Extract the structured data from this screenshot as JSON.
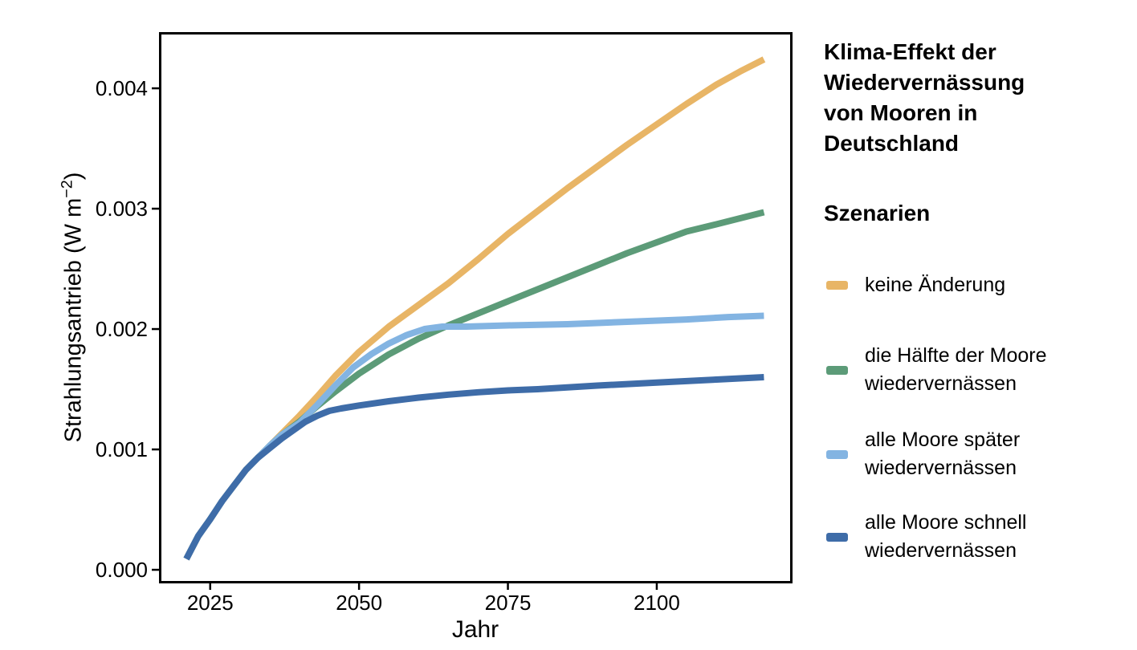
{
  "chart_data": {
    "type": "line",
    "title": "Klima-Effekt der Wiedervernässung von Mooren in Deutschland",
    "title_lines": [
      "Klima-Effekt der",
      "Wiedervernässung",
      "von Mooren in",
      "Deutschland"
    ],
    "legend_title": "Szenarien",
    "legend_position": "right",
    "grid": false,
    "xlabel": "Jahr",
    "ylabel": "Strahlungsantrieb (W m−2)",
    "ylabel_prefix": "Strahlungsantrieb (W m",
    "ylabel_superscript": "−2",
    "ylabel_suffix": ")",
    "xlim": [
      2016.4,
      2122.8
    ],
    "ylim": [
      -0.000113,
      0.004467
    ],
    "x_ticks": [
      {
        "value": 2025,
        "label": "2025"
      },
      {
        "value": 2050,
        "label": "2050"
      },
      {
        "value": 2075,
        "label": "2075"
      },
      {
        "value": 2100,
        "label": "2100"
      }
    ],
    "y_ticks": [
      {
        "value": 0.0,
        "label": "0.000"
      },
      {
        "value": 0.001,
        "label": "0.001"
      },
      {
        "value": 0.002,
        "label": "0.002"
      },
      {
        "value": 0.003,
        "label": "0.003"
      },
      {
        "value": 0.004,
        "label": "0.004"
      }
    ],
    "axis_color": "#000000",
    "series": [
      {
        "name": "keine Änderung",
        "slug": "keine-aenderung",
        "legend_lines": [
          "keine Änderung"
        ],
        "color": "#E8B566",
        "points": [
          [
            2021,
            9e-05
          ],
          [
            2023,
            0.00028
          ],
          [
            2025,
            0.00042
          ],
          [
            2027,
            0.00057
          ],
          [
            2029,
            0.0007
          ],
          [
            2031,
            0.00083
          ],
          [
            2033,
            0.00093
          ],
          [
            2035,
            0.00103
          ],
          [
            2037,
            0.00113
          ],
          [
            2040,
            0.00128
          ],
          [
            2043,
            0.00144
          ],
          [
            2046,
            0.00161
          ],
          [
            2050,
            0.00181
          ],
          [
            2055,
            0.00202
          ],
          [
            2060,
            0.0022
          ],
          [
            2065,
            0.00238
          ],
          [
            2070,
            0.00258
          ],
          [
            2075,
            0.00279
          ],
          [
            2080,
            0.00298
          ],
          [
            2085,
            0.00317
          ],
          [
            2090,
            0.00335
          ],
          [
            2095,
            0.00353
          ],
          [
            2100,
            0.0037
          ],
          [
            2105,
            0.00387
          ],
          [
            2110,
            0.00403
          ],
          [
            2114,
            0.00414
          ],
          [
            2118,
            0.00424
          ]
        ]
      },
      {
        "name": "die Hälfte der Moore wiedervernässen",
        "slug": "haelfte-der-moore-wiedervernaessen",
        "legend_lines": [
          "die Hälfte der Moore",
          "wiedervernässen"
        ],
        "color": "#5C9B78",
        "points": [
          [
            2021,
            9e-05
          ],
          [
            2023,
            0.00028
          ],
          [
            2025,
            0.00042
          ],
          [
            2027,
            0.00057
          ],
          [
            2029,
            0.0007
          ],
          [
            2031,
            0.00083
          ],
          [
            2033,
            0.00093
          ],
          [
            2035,
            0.00103
          ],
          [
            2037,
            0.00112
          ],
          [
            2040,
            0.00123
          ],
          [
            2043,
            0.00136
          ],
          [
            2046,
            0.00148
          ],
          [
            2050,
            0.00163
          ],
          [
            2055,
            0.00179
          ],
          [
            2060,
            0.00192
          ],
          [
            2065,
            0.00203
          ],
          [
            2070,
            0.00213
          ],
          [
            2075,
            0.00223
          ],
          [
            2080,
            0.00233
          ],
          [
            2085,
            0.00243
          ],
          [
            2090,
            0.00253
          ],
          [
            2095,
            0.00263
          ],
          [
            2100,
            0.00272
          ],
          [
            2105,
            0.00281
          ],
          [
            2110,
            0.00287
          ],
          [
            2114,
            0.00292
          ],
          [
            2118,
            0.00297
          ]
        ]
      },
      {
        "name": "alle Moore später wiedervernässen",
        "slug": "alle-moore-spaeter-wiedervernaessen",
        "legend_lines": [
          "alle Moore später",
          "wiedervernässen"
        ],
        "color": "#83B4E2",
        "points": [
          [
            2021,
            9e-05
          ],
          [
            2023,
            0.00028
          ],
          [
            2025,
            0.00042
          ],
          [
            2027,
            0.00057
          ],
          [
            2029,
            0.0007
          ],
          [
            2031,
            0.00083
          ],
          [
            2033,
            0.00093
          ],
          [
            2035,
            0.00103
          ],
          [
            2037,
            0.00112
          ],
          [
            2040,
            0.00122
          ],
          [
            2043,
            0.00137
          ],
          [
            2046,
            0.00153
          ],
          [
            2049,
            0.00168
          ],
          [
            2052,
            0.00179
          ],
          [
            2055,
            0.00188
          ],
          [
            2058,
            0.00195
          ],
          [
            2061,
            0.002
          ],
          [
            2064,
            0.00202
          ],
          [
            2068,
            0.00202
          ],
          [
            2075,
            0.00203
          ],
          [
            2085,
            0.00204
          ],
          [
            2095,
            0.00206
          ],
          [
            2105,
            0.00208
          ],
          [
            2112,
            0.0021
          ],
          [
            2118,
            0.00211
          ]
        ]
      },
      {
        "name": "alle Moore schnell wiedervernässen",
        "slug": "alle-moore-schnell-wiedervernaessen",
        "legend_lines": [
          "alle Moore schnell",
          "wiedervernässen"
        ],
        "color": "#3E6CA8",
        "points": [
          [
            2021,
            9e-05
          ],
          [
            2023,
            0.00028
          ],
          [
            2025,
            0.00042
          ],
          [
            2027,
            0.00057
          ],
          [
            2029,
            0.0007
          ],
          [
            2031,
            0.00083
          ],
          [
            2033,
            0.00093
          ],
          [
            2035,
            0.00101
          ],
          [
            2037,
            0.00109
          ],
          [
            2039,
            0.00116
          ],
          [
            2041,
            0.00123
          ],
          [
            2043,
            0.00128
          ],
          [
            2045,
            0.00132
          ],
          [
            2047,
            0.00134
          ],
          [
            2050,
            0.001365
          ],
          [
            2055,
            0.0014
          ],
          [
            2060,
            0.00143
          ],
          [
            2065,
            0.001455
          ],
          [
            2070,
            0.001475
          ],
          [
            2075,
            0.00149
          ],
          [
            2080,
            0.0015
          ],
          [
            2090,
            0.00153
          ],
          [
            2100,
            0.001555
          ],
          [
            2110,
            0.00158
          ],
          [
            2118,
            0.0016
          ]
        ]
      }
    ]
  }
}
